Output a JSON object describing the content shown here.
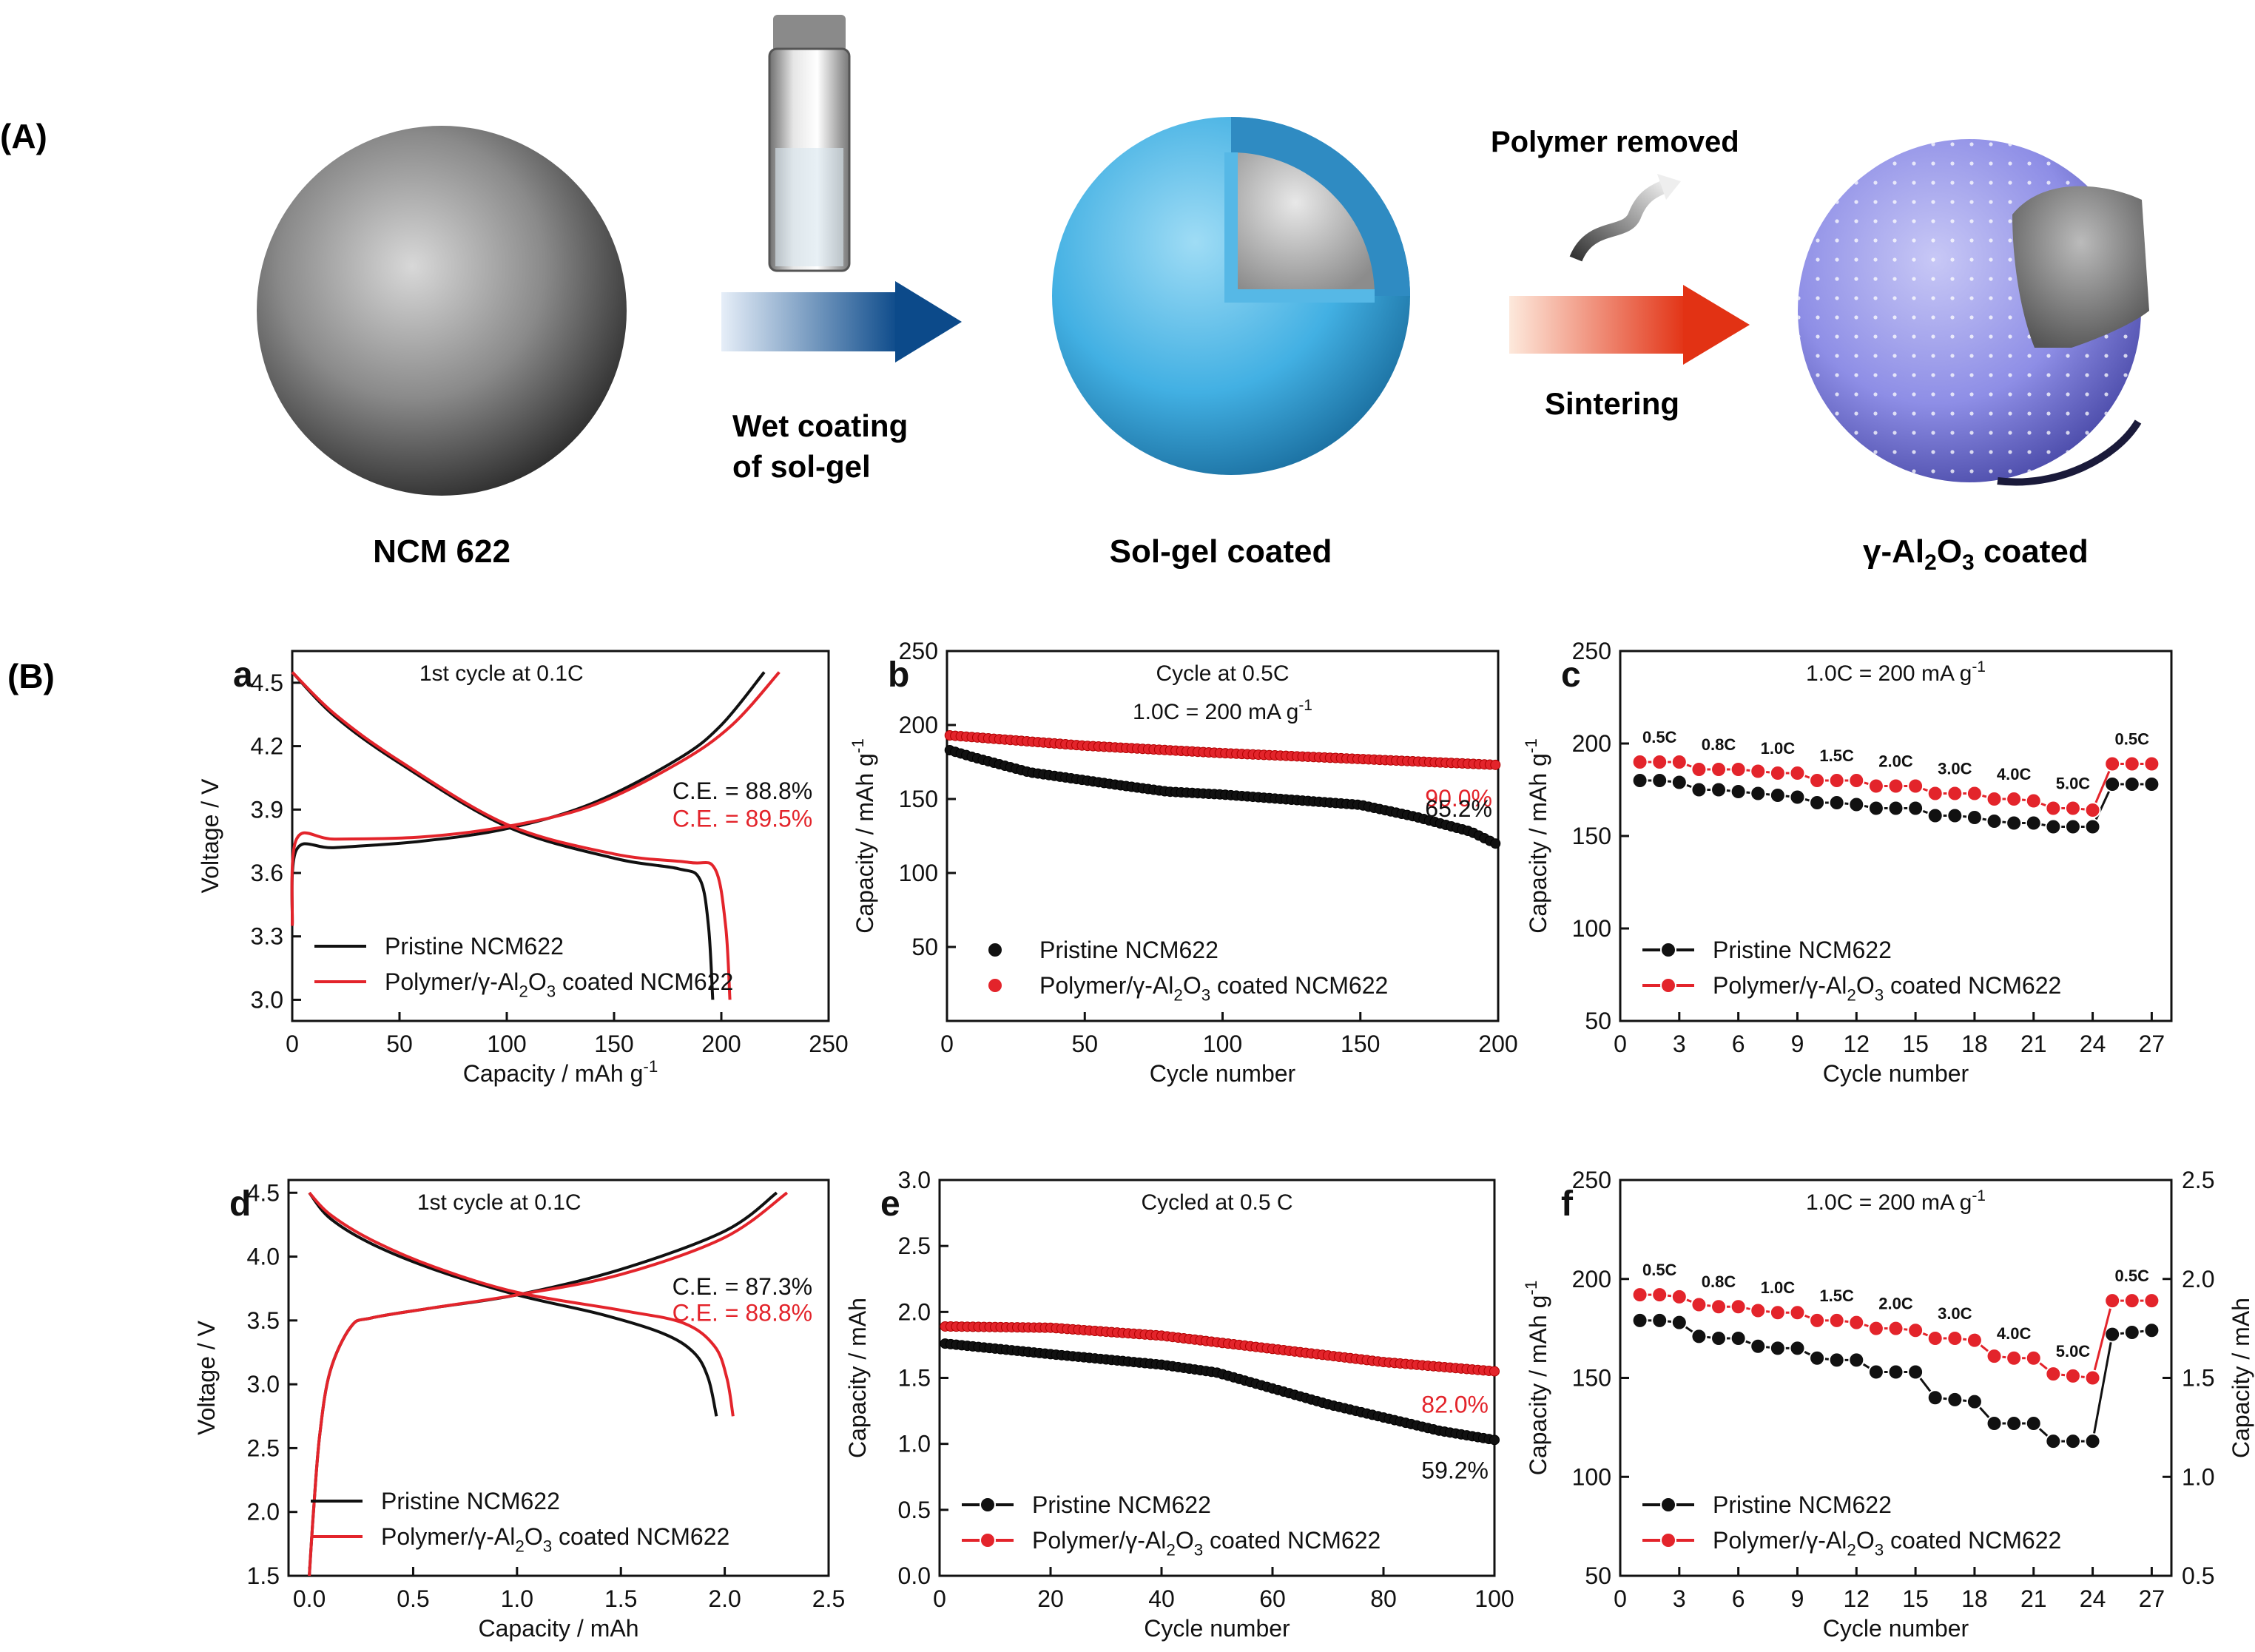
{
  "section_a": {
    "label": "(A)",
    "step1": "Wet coating",
    "step1b": "of sol-gel",
    "step2_top": "Polymer removed",
    "step2": "Sintering",
    "particle1": "NCM 622",
    "particle2": "Sol-gel coated",
    "particle3": "γ-Al",
    "p3_s1": "2",
    "p3_o": "O",
    "p3_s2": "3",
    "p3_tail": " coated"
  },
  "section_b": {
    "label": "(B)"
  },
  "colors": {
    "pristine": "#111111",
    "coated": "#e3242b"
  },
  "chart_data": [
    {
      "id": "a",
      "type": "line",
      "title": "1st cycle at 0.1C",
      "xlabel": "Capacity / mAh g",
      "xlabel_sup": "-1",
      "ylabel": "Voltage / V",
      "xlim": [
        0,
        250
      ],
      "ylim": [
        2.9,
        4.65
      ],
      "xticks": [
        "0",
        "50",
        "100",
        "150",
        "200",
        "250"
      ],
      "yticks": [
        "3.0",
        "3.3",
        "3.6",
        "3.9",
        "4.2",
        "4.5"
      ],
      "series": [
        {
          "name": "Pristine NCM622",
          "charge": [
            [
              0,
              3.35
            ],
            [
              2,
              3.71
            ],
            [
              20,
              3.72
            ],
            [
              60,
              3.75
            ],
            [
              100,
              3.81
            ],
            [
              140,
              3.93
            ],
            [
              180,
              4.14
            ],
            [
              200,
              4.3
            ],
            [
              220,
              4.55
            ]
          ],
          "discharge": [
            [
              0,
              4.55
            ],
            [
              20,
              4.34
            ],
            [
              50,
              4.12
            ],
            [
              100,
              3.82
            ],
            [
              150,
              3.67
            ],
            [
              180,
              3.62
            ],
            [
              190,
              3.57
            ],
            [
              194,
              3.35
            ],
            [
              196,
              3.0
            ]
          ]
        },
        {
          "name": "Polymer/γ-Al2O3 coated NCM622",
          "charge": [
            [
              0,
              3.35
            ],
            [
              2,
              3.76
            ],
            [
              20,
              3.76
            ],
            [
              60,
              3.77
            ],
            [
              100,
              3.82
            ],
            [
              140,
              3.92
            ],
            [
              180,
              4.12
            ],
            [
              205,
              4.3
            ],
            [
              227,
              4.55
            ]
          ],
          "discharge": [
            [
              0,
              4.55
            ],
            [
              20,
              4.35
            ],
            [
              50,
              4.13
            ],
            [
              100,
              3.83
            ],
            [
              150,
              3.69
            ],
            [
              185,
              3.65
            ],
            [
              197,
              3.62
            ],
            [
              202,
              3.35
            ],
            [
              204,
              3.0
            ]
          ]
        }
      ],
      "annotations": {
        "ce_pristine": "C.E. = 88.8%",
        "ce_coated": "C.E. = 89.5%"
      }
    },
    {
      "id": "b",
      "type": "scatter",
      "title": "Cycle at 0.5C",
      "subtitle": "1.0C = 200 mA g",
      "subtitle_sup": "-1",
      "xlabel": "Cycle number",
      "ylabel": "Capacity / mAh g",
      "ylabel_sup": "-1",
      "xlim": [
        0,
        200
      ],
      "ylim": [
        0,
        250
      ],
      "xticks": [
        "0",
        "50",
        "100",
        "150",
        "200"
      ],
      "yticks": [
        "50",
        "100",
        "150",
        "200",
        "250"
      ],
      "series": [
        {
          "name": "Pristine NCM622",
          "x_start": 1,
          "x_end": 200,
          "knots": [
            [
              1,
              183
            ],
            [
              10,
              178
            ],
            [
              30,
              168
            ],
            [
              60,
              160
            ],
            [
              80,
              155
            ],
            [
              100,
              153
            ],
            [
              150,
              146
            ],
            [
              170,
              138
            ],
            [
              190,
              128
            ],
            [
              200,
              119
            ]
          ]
        },
        {
          "name": "Polymer/γ-Al2O3 coated NCM622",
          "x_start": 1,
          "x_end": 200,
          "knots": [
            [
              1,
              193
            ],
            [
              50,
              186
            ],
            [
              100,
              181
            ],
            [
              150,
              177
            ],
            [
              200,
              173
            ]
          ]
        }
      ],
      "annotations": {
        "retention_coated": "90.0%",
        "retention_pristine": "65.2%"
      }
    },
    {
      "id": "c",
      "type": "line",
      "title": "1.0C = 200 mA g",
      "title_sup": "-1",
      "xlabel": "Cycle number",
      "ylabel": "Capacity / mAh g",
      "ylabel_sup": "-1",
      "xlim": [
        0,
        28
      ],
      "ylim": [
        50,
        250
      ],
      "xticks": [
        "0",
        "3",
        "6",
        "9",
        "12",
        "15",
        "18",
        "21",
        "24",
        "27"
      ],
      "yticks": [
        "50",
        "100",
        "150",
        "200",
        "250"
      ],
      "series": [
        {
          "name": "Pristine NCM622",
          "x": [
            1,
            2,
            3,
            4,
            5,
            6,
            7,
            8,
            9,
            10,
            11,
            12,
            13,
            14,
            15,
            16,
            17,
            18,
            19,
            20,
            21,
            22,
            23,
            24,
            25,
            26,
            27
          ],
          "values": [
            180,
            180,
            179,
            175,
            175,
            174,
            173,
            172,
            171,
            168,
            168,
            167,
            165,
            165,
            165,
            161,
            161,
            160,
            158,
            157,
            157,
            155,
            155,
            155,
            178,
            178,
            178
          ]
        },
        {
          "name": "Polymer/γ-Al2O3 coated NCM622",
          "x": [
            1,
            2,
            3,
            4,
            5,
            6,
            7,
            8,
            9,
            10,
            11,
            12,
            13,
            14,
            15,
            16,
            17,
            18,
            19,
            20,
            21,
            22,
            23,
            24,
            25,
            26,
            27
          ],
          "values": [
            190,
            190,
            190,
            186,
            186,
            186,
            185,
            184,
            184,
            180,
            180,
            180,
            177,
            177,
            177,
            173,
            173,
            173,
            170,
            170,
            169,
            165,
            165,
            164,
            189,
            189,
            189
          ]
        }
      ],
      "rate_labels": [
        "0.5C",
        "0.8C",
        "1.0C",
        "1.5C",
        "2.0C",
        "3.0C",
        "4.0C",
        "5.0C",
        "0.5C"
      ]
    },
    {
      "id": "d",
      "type": "line",
      "title": "1st cycle at 0.1C",
      "xlabel": "Capacity / mAh",
      "ylabel": "Voltage / V",
      "xlim": [
        -0.1,
        2.5
      ],
      "ylim": [
        1.5,
        4.6
      ],
      "xticks": [
        "0.0",
        "0.5",
        "1.0",
        "1.5",
        "2.0",
        "2.5"
      ],
      "yticks": [
        "1.5",
        "2.0",
        "2.5",
        "3.0",
        "3.5",
        "4.0",
        "4.5"
      ],
      "series": [
        {
          "name": "Pristine NCM622",
          "charge": [
            [
              0,
              1.5
            ],
            [
              0.02,
              2.0
            ],
            [
              0.05,
              2.6
            ],
            [
              0.1,
              3.1
            ],
            [
              0.2,
              3.45
            ],
            [
              0.3,
              3.52
            ],
            [
              0.6,
              3.6
            ],
            [
              1.0,
              3.7
            ],
            [
              1.5,
              3.9
            ],
            [
              2.0,
              4.2
            ],
            [
              2.25,
              4.5
            ]
          ],
          "discharge": [
            [
              0,
              4.5
            ],
            [
              0.1,
              4.3
            ],
            [
              0.3,
              4.1
            ],
            [
              0.6,
              3.9
            ],
            [
              1.0,
              3.7
            ],
            [
              1.4,
              3.55
            ],
            [
              1.7,
              3.4
            ],
            [
              1.85,
              3.25
            ],
            [
              1.92,
              3.05
            ],
            [
              1.96,
              2.75
            ]
          ]
        },
        {
          "name": "Polymer/γ-Al2O3 coated NCM622",
          "charge": [
            [
              0,
              1.5
            ],
            [
              0.02,
              2.0
            ],
            [
              0.05,
              2.6
            ],
            [
              0.1,
              3.1
            ],
            [
              0.2,
              3.45
            ],
            [
              0.3,
              3.52
            ],
            [
              0.6,
              3.6
            ],
            [
              1.0,
              3.7
            ],
            [
              1.5,
              3.86
            ],
            [
              2.0,
              4.15
            ],
            [
              2.3,
              4.5
            ]
          ],
          "discharge": [
            [
              0,
              4.5
            ],
            [
              0.1,
              4.33
            ],
            [
              0.3,
              4.13
            ],
            [
              0.6,
              3.92
            ],
            [
              1.0,
              3.72
            ],
            [
              1.5,
              3.58
            ],
            [
              1.8,
              3.48
            ],
            [
              1.95,
              3.3
            ],
            [
              2.01,
              3.05
            ],
            [
              2.04,
              2.75
            ]
          ]
        }
      ],
      "annotations": {
        "ce_pristine": "C.E. = 87.3%",
        "ce_coated": "C.E. = 88.8%"
      }
    },
    {
      "id": "e",
      "type": "scatter",
      "title": "Cycled at 0.5 C",
      "xlabel": "Cycle number",
      "ylabel": "Capacity / mAh",
      "xlim": [
        0,
        100
      ],
      "ylim": [
        0,
        3.0
      ],
      "xticks": [
        "0",
        "20",
        "40",
        "60",
        "80",
        "100"
      ],
      "yticks": [
        "0.0",
        "0.5",
        "1.0",
        "1.5",
        "2.0",
        "2.5",
        "3.0"
      ],
      "series": [
        {
          "name": "Pristine NCM622",
          "x_start": 1,
          "x_end": 100,
          "knots": [
            [
              1,
              1.76
            ],
            [
              20,
              1.68
            ],
            [
              40,
              1.6
            ],
            [
              50,
              1.54
            ],
            [
              60,
              1.42
            ],
            [
              70,
              1.3
            ],
            [
              80,
              1.2
            ],
            [
              90,
              1.1
            ],
            [
              100,
              1.03
            ]
          ]
        },
        {
          "name": "Polymer/γ-Al2O3 coated NCM622",
          "x_start": 1,
          "x_end": 100,
          "knots": [
            [
              1,
              1.89
            ],
            [
              20,
              1.88
            ],
            [
              40,
              1.82
            ],
            [
              60,
              1.72
            ],
            [
              80,
              1.62
            ],
            [
              100,
              1.55
            ]
          ]
        }
      ],
      "annotations": {
        "retention_coated": "82.0%",
        "retention_pristine": "59.2%"
      }
    },
    {
      "id": "f",
      "type": "line",
      "title": "1.0C = 200 mA g",
      "title_sup": "-1",
      "xlabel": "Cycle number",
      "ylabel": "Capacity / mAh g",
      "ylabel_sup": "-1",
      "ylabel_right": "Capacity / mAh",
      "xlim": [
        0,
        28
      ],
      "ylim": [
        50,
        250
      ],
      "ylim_right": [
        0.5,
        2.5
      ],
      "xticks": [
        "0",
        "3",
        "6",
        "9",
        "12",
        "15",
        "18",
        "21",
        "24",
        "27"
      ],
      "yticks": [
        "50",
        "100",
        "150",
        "200",
        "250"
      ],
      "yticks_right": [
        "0.5",
        "1.0",
        "1.5",
        "2.0",
        "2.5"
      ],
      "series": [
        {
          "name": "Pristine NCM622",
          "x": [
            1,
            2,
            3,
            4,
            5,
            6,
            7,
            8,
            9,
            10,
            11,
            12,
            13,
            14,
            15,
            16,
            17,
            18,
            19,
            20,
            21,
            22,
            23,
            24,
            25,
            26,
            27
          ],
          "values": [
            179,
            179,
            178,
            171,
            170,
            170,
            166,
            165,
            165,
            160,
            159,
            159,
            153,
            153,
            153,
            140,
            139,
            138,
            127,
            127,
            127,
            118,
            118,
            118,
            172,
            173,
            174
          ]
        },
        {
          "name": "Polymer/γ-Al2O3 coated NCM622",
          "x": [
            1,
            2,
            3,
            4,
            5,
            6,
            7,
            8,
            9,
            10,
            11,
            12,
            13,
            14,
            15,
            16,
            17,
            18,
            19,
            20,
            21,
            22,
            23,
            24,
            25,
            26,
            27
          ],
          "values": [
            192,
            192,
            191,
            187,
            186,
            186,
            184,
            183,
            183,
            179,
            179,
            178,
            175,
            175,
            174,
            170,
            170,
            169,
            161,
            160,
            160,
            152,
            151,
            150,
            189,
            189,
            189
          ]
        }
      ],
      "rate_labels": [
        "0.5C",
        "0.8C",
        "1.0C",
        "1.5C",
        "2.0C",
        "3.0C",
        "4.0C",
        "5.0C",
        "0.5C"
      ]
    }
  ],
  "legend": {
    "pristine": "Pristine NCM622",
    "coated_a": "Polymer/γ-Al",
    "coated_sub2": "2",
    "coated_o": "O",
    "coated_sub3": "3",
    "coated_tail": " coated NCM622"
  }
}
